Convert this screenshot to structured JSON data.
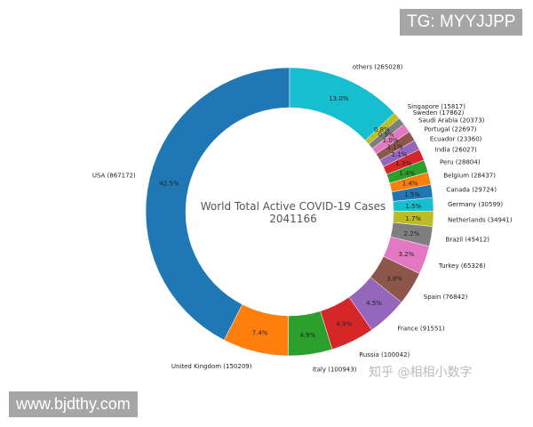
{
  "chart_data": {
    "type": "pie",
    "donut": true,
    "title": "World Total Active COVID-19 Cases",
    "total": "2041166",
    "start_angle_deg": 90,
    "direction": "counterclockwise",
    "slices": [
      {
        "label": "USA (867172)",
        "value": 867172,
        "pct": "42.5%",
        "color": "#1f77b4"
      },
      {
        "label": "United Kingdom (150209)",
        "value": 150209,
        "pct": "7.4%",
        "color": "#ff7f0e"
      },
      {
        "label": "Italy (100943)",
        "value": 100943,
        "pct": "4.9%",
        "color": "#2ca02c"
      },
      {
        "label": "Russia (100042)",
        "value": 100042,
        "pct": "4.9%",
        "color": "#d62728"
      },
      {
        "label": "France (91551)",
        "value": 91551,
        "pct": "4.5%",
        "color": "#9467bd"
      },
      {
        "label": "Spain (76842)",
        "value": 76842,
        "pct": "3.8%",
        "color": "#8c564b"
      },
      {
        "label": "Turkey (65326)",
        "value": 65326,
        "pct": "3.2%",
        "color": "#e377c2"
      },
      {
        "label": "Brazil (45412)",
        "value": 45412,
        "pct": "2.2%",
        "color": "#7f7f7f"
      },
      {
        "label": "Netherlands (34941)",
        "value": 34941,
        "pct": "1.7%",
        "color": "#bcbd22"
      },
      {
        "label": "Germany (30599)",
        "value": 30599,
        "pct": "1.5%",
        "color": "#17becf"
      },
      {
        "label": "Canada (29724)",
        "value": 29724,
        "pct": "1.5%",
        "color": "#1f77b4"
      },
      {
        "label": "Belgium (28437)",
        "value": 28437,
        "pct": "1.4%",
        "color": "#ff7f0e"
      },
      {
        "label": "Peru (28804)",
        "value": 28804,
        "pct": "1.4%",
        "color": "#2ca02c"
      },
      {
        "label": "India (26027)",
        "value": 26027,
        "pct": "1.3%",
        "color": "#d62728"
      },
      {
        "label": "Ecuador (23360)",
        "value": 23360,
        "pct": "1.1%",
        "color": "#9467bd"
      },
      {
        "label": "Portugal (22697)",
        "value": 22697,
        "pct": "1.1%",
        "color": "#8c564b"
      },
      {
        "label": "Saudi Arabia (20373)",
        "value": 20373,
        "pct": "1.0%",
        "color": "#e377c2"
      },
      {
        "label": "Sweden (17862)",
        "value": 17862,
        "pct": "0.9%",
        "color": "#7f7f7f"
      },
      {
        "label": "Singapore (15817)",
        "value": 15817,
        "pct": "0.8%",
        "color": "#bcbd22"
      },
      {
        "label": "others (265028)",
        "value": 265028,
        "pct": "13.0%",
        "color": "#17becf"
      }
    ]
  },
  "watermarks": {
    "top": "TG: MYYJJPP",
    "bottom": "www.bjdthy.com",
    "zhihu": "知乎 @相相小数字"
  }
}
